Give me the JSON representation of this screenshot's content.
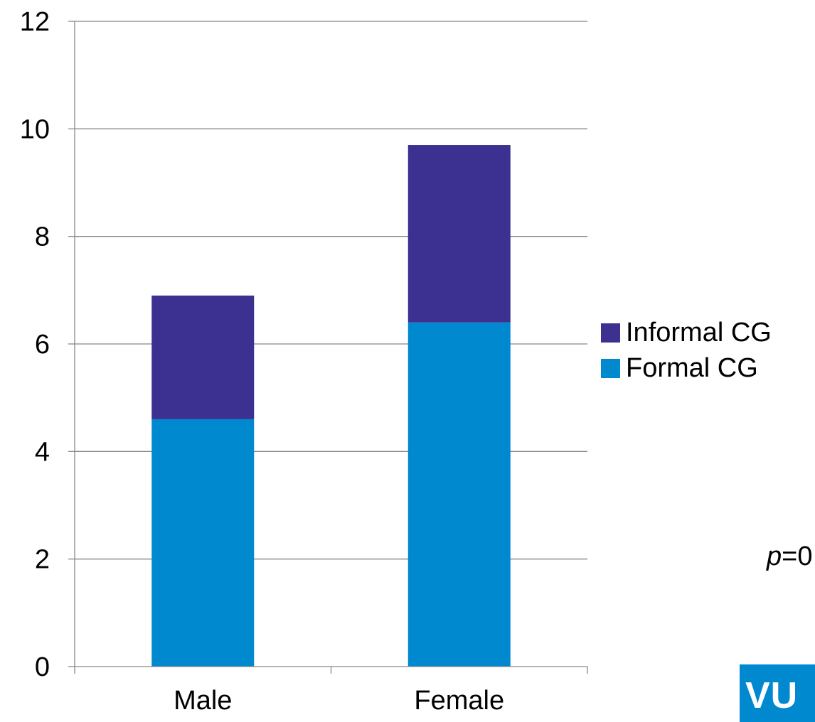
{
  "chart_data": {
    "type": "bar",
    "stacked": true,
    "categories": [
      "Male",
      "Female"
    ],
    "series": [
      {
        "name": "Formal CG",
        "values": [
          4.6,
          6.4
        ],
        "color": "#0089cf"
      },
      {
        "name": "Informal CG",
        "values": [
          2.3,
          3.3
        ],
        "color": "#3c3190"
      }
    ],
    "ylim": [
      0,
      12
    ],
    "yticks": [
      "0",
      "2",
      "4",
      "6",
      "8",
      "10",
      "12"
    ],
    "grid": true,
    "legend_position": "right",
    "legend_order": [
      "Informal CG",
      "Formal CG"
    ]
  },
  "annotation": {
    "p_symbol": "p",
    "p_rest": "=0"
  },
  "logo": {
    "text": "VU"
  }
}
